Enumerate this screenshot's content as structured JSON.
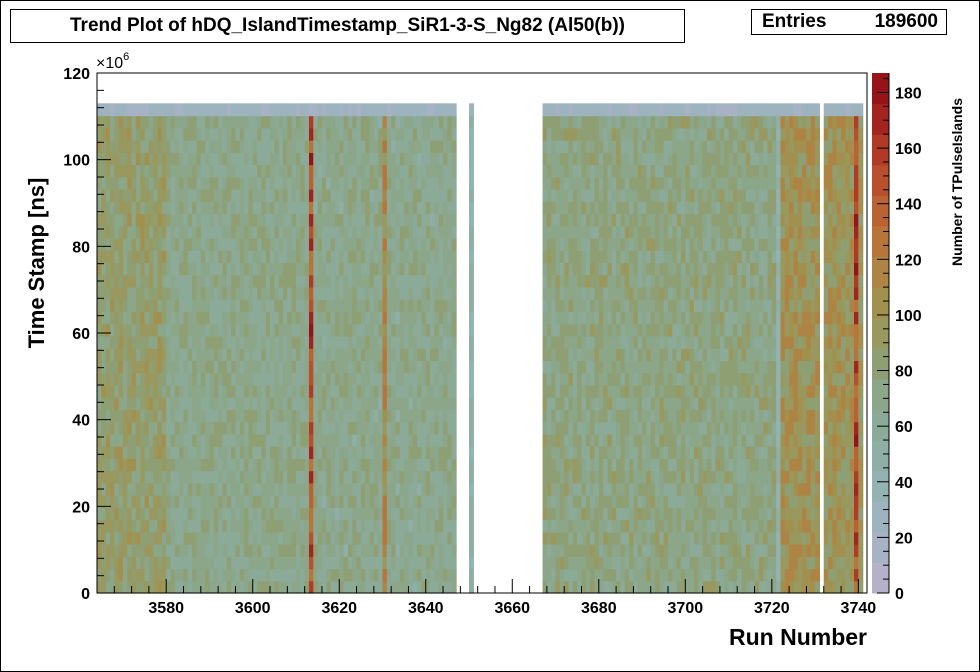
{
  "title": "Trend Plot of hDQ_IslandTimestamp_SiR1-3-S_Ng82 (Al50(b))",
  "stats": {
    "label": "Entries",
    "value": "189600"
  },
  "colors": {
    "palette": [
      "#b4b1c9",
      "#a7b2c4",
      "#9db3bd",
      "#93b2b2",
      "#8eaea6",
      "#8caa98",
      "#8ba689",
      "#8f9f74",
      "#98985f",
      "#a2904f",
      "#ad8443",
      "#b7753a",
      "#bb6233",
      "#b94f2c",
      "#b03a25",
      "#a3241e",
      "#951419"
    ]
  },
  "chart_data": {
    "type": "heatmap",
    "title": "Trend Plot of hDQ_IslandTimestamp_SiR1-3-S_Ng82 (Al50(b))",
    "xlabel": "Run Number",
    "ylabel": "Time Stamp [ns]",
    "zlabel": "Number of TPulseIslands",
    "y_exponent_label": "×10",
    "y_exponent": "6",
    "xlim": [
      3564,
      3742
    ],
    "ylim": [
      0,
      120
    ],
    "zlim": [
      0,
      187
    ],
    "x_ticks": [
      3580,
      3600,
      3620,
      3640,
      3660,
      3680,
      3700,
      3720,
      3740
    ],
    "y_ticks": [
      0,
      20,
      40,
      60,
      80,
      100,
      120
    ],
    "z_ticks": [
      0,
      20,
      40,
      60,
      80,
      100,
      120,
      140,
      160,
      180
    ],
    "entries": 189600,
    "runs_with_data": [
      [
        3564,
        3647
      ],
      [
        3650,
        3651
      ],
      [
        3667,
        3741
      ]
    ],
    "run_values": [
      {
        "runs": [
          3564,
          3580
        ],
        "mean_count": 85
      },
      {
        "runs": [
          3580,
          3613
        ],
        "mean_count": 70
      },
      {
        "runs": [
          3613,
          3614
        ],
        "mean_count": 150
      },
      {
        "runs": [
          3614,
          3630
        ],
        "mean_count": 68
      },
      {
        "runs": [
          3630,
          3631
        ],
        "mean_count": 110
      },
      {
        "runs": [
          3631,
          3647
        ],
        "mean_count": 68
      },
      {
        "runs": [
          3650,
          3651
        ],
        "mean_count": 45
      },
      {
        "runs": [
          3667,
          3721
        ],
        "mean_count": 75
      },
      {
        "runs": [
          3721,
          3722
        ],
        "mean_count": 45
      },
      {
        "runs": [
          3722,
          3731
        ],
        "mean_count": 100
      },
      {
        "runs": [
          3732,
          3739
        ],
        "mean_count": 98
      },
      {
        "runs": [
          3739,
          3740
        ],
        "mean_count": 150
      },
      {
        "runs": [
          3740,
          3741
        ],
        "mean_count": 95
      }
    ],
    "timestamp_range_filled": [
      0,
      113
    ],
    "last_timestamp_bin_count": 20
  }
}
